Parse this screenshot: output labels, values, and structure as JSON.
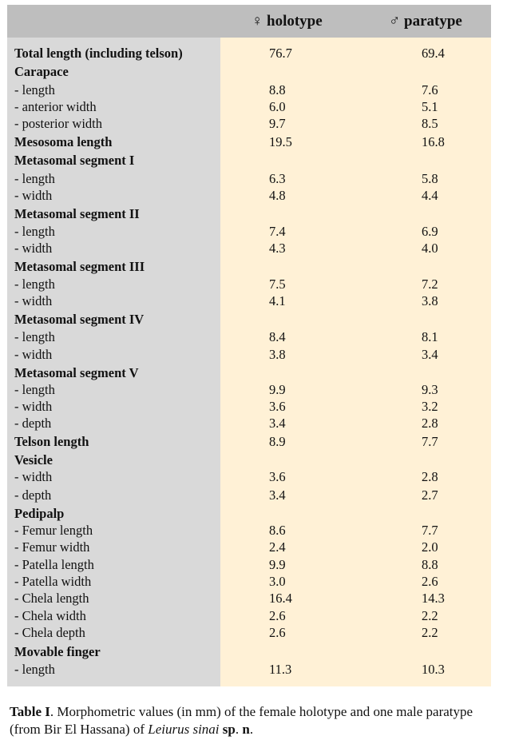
{
  "header": {
    "holotype": "♀ holotype",
    "paratype": "♂ paratype"
  },
  "rows": [
    {
      "label": "Total length (including telson)",
      "holotype": "76.7",
      "paratype": "69.4",
      "bold": true
    },
    {
      "label": "Carapace",
      "holotype": "",
      "paratype": "",
      "bold": true
    },
    {
      "label": "- length",
      "holotype": "8.8",
      "paratype": "7.6",
      "bold": false
    },
    {
      "label": "- anterior width",
      "holotype": "6.0",
      "paratype": "5.1",
      "bold": false
    },
    {
      "label": "- posterior width",
      "holotype": "9.7",
      "paratype": "8.5",
      "bold": false
    },
    {
      "label": "Mesosoma length",
      "holotype": "19.5",
      "paratype": "16.8",
      "bold": true
    },
    {
      "label": "Metasomal segment I",
      "holotype": "",
      "paratype": "",
      "bold": true
    },
    {
      "label": "- length",
      "holotype": "6.3",
      "paratype": "5.8",
      "bold": false
    },
    {
      "label": "- width",
      "holotype": "4.8",
      "paratype": "4.4",
      "bold": false
    },
    {
      "label": "Metasomal segment II",
      "holotype": "",
      "paratype": "",
      "bold": true
    },
    {
      "label": "- length",
      "holotype": "7.4",
      "paratype": "6.9",
      "bold": false
    },
    {
      "label": "- width",
      "holotype": "4.3",
      "paratype": "4.0",
      "bold": false
    },
    {
      "label": "Metasomal segment III",
      "holotype": "",
      "paratype": "",
      "bold": true
    },
    {
      "label": "- length",
      "holotype": "7.5",
      "paratype": "7.2",
      "bold": false
    },
    {
      "label": "- width",
      "holotype": "4.1",
      "paratype": "3.8",
      "bold": false
    },
    {
      "label": "Metasomal segment IV",
      "holotype": "",
      "paratype": "",
      "bold": true
    },
    {
      "label": "- length",
      "holotype": "8.4",
      "paratype": "8.1",
      "bold": false
    },
    {
      "label": "- width",
      "holotype": "3.8",
      "paratype": "3.4",
      "bold": false
    },
    {
      "label": "Metasomal segment V",
      "holotype": "",
      "paratype": "",
      "bold": true
    },
    {
      "label": "- length",
      "holotype": "9.9",
      "paratype": "9.3",
      "bold": false
    },
    {
      "label": "- width",
      "holotype": "3.6",
      "paratype": "3.2",
      "bold": false
    },
    {
      "label": "- depth",
      "holotype": "3.4",
      "paratype": "2.8",
      "bold": false
    },
    {
      "label": "Telson length",
      "holotype": "8.9",
      "paratype": "7.7",
      "bold": true
    },
    {
      "label": "Vesicle",
      "holotype": "",
      "paratype": "",
      "bold": true
    },
    {
      "label": "- width",
      "holotype": "3.6",
      "paratype": "2.8",
      "bold": false
    },
    {
      "label": "- depth",
      "holotype": "3.4",
      "paratype": "2.7",
      "bold": false
    },
    {
      "label": "Pedipalp",
      "holotype": "",
      "paratype": "",
      "bold": true
    },
    {
      "label": "- Femur length",
      "holotype": "8.6",
      "paratype": "7.7",
      "bold": false
    },
    {
      "label": "- Femur width",
      "holotype": "2.4",
      "paratype": "2.0",
      "bold": false
    },
    {
      "label": "- Patella length",
      "holotype": "9.9",
      "paratype": "8.8",
      "bold": false
    },
    {
      "label": "- Patella width",
      "holotype": "3.0",
      "paratype": "2.6",
      "bold": false
    },
    {
      "label": "- Chela length",
      "holotype": "16.4",
      "paratype": "14.3",
      "bold": false
    },
    {
      "label": "- Chela width",
      "holotype": "2.6",
      "paratype": "2.2",
      "bold": false
    },
    {
      "label": "- Chela depth",
      "holotype": "2.6",
      "paratype": "2.2",
      "bold": false
    },
    {
      "label": "Movable finger",
      "holotype": "",
      "paratype": "",
      "bold": true
    },
    {
      "label": "- length",
      "holotype": "11.3",
      "paratype": "10.3",
      "bold": false
    }
  ],
  "caption": {
    "label": "Table I",
    "text1": ". Morphometric values (in mm) of the female holotype and one male paratype (from Bir El Hassana) of ",
    "species": "Leiurus sinai",
    "sp": "sp",
    "dot1": ". ",
    "n": "n",
    "dot2": "."
  }
}
